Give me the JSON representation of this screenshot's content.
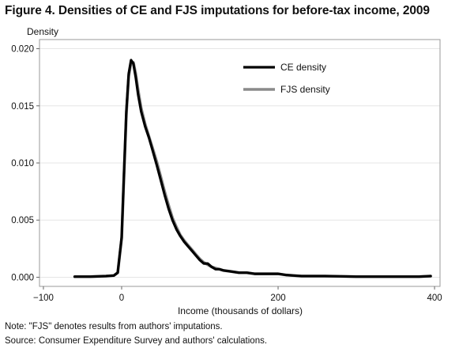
{
  "figure_title": "Figure 4. Densities of CE and FJS imputations for before-tax income, 2009",
  "note": "Note: \"FJS\" denotes results from authors' imputations.",
  "source": "Source: Consumer Expenditure Survey and authors' calculations.",
  "chart_data": {
    "type": "line",
    "title": "Figure 4. Densities of CE and FJS imputations for before-tax income, 2009",
    "xlabel": "Income (thousands of dollars)",
    "ylabel": "Density",
    "xlim": [
      -105,
      407
    ],
    "ylim": [
      -0.0008,
      0.0208
    ],
    "x_ticks": [
      -100,
      0,
      200,
      400
    ],
    "x_tick_labels": [
      "−100",
      "0",
      "200",
      "400"
    ],
    "y_ticks": [
      0,
      0.005,
      0.01,
      0.015,
      0.02
    ],
    "y_tick_labels": [
      "0.000",
      "0.005",
      "0.010",
      "0.015",
      "0.020"
    ],
    "grid": true,
    "legend": "top-right",
    "series": [
      {
        "name": "CE density",
        "color": "#000000",
        "x": [
          -60,
          -40,
          -20,
          -10,
          -5,
          0,
          3,
          6,
          9,
          12,
          15,
          18,
          21,
          25,
          30,
          35,
          40,
          45,
          50,
          55,
          60,
          65,
          70,
          75,
          80,
          85,
          90,
          95,
          100,
          105,
          110,
          115,
          120,
          125,
          130,
          140,
          150,
          160,
          170,
          180,
          190,
          200,
          210,
          220,
          230,
          240,
          260,
          280,
          300,
          320,
          340,
          360,
          380,
          395
        ],
        "y": [
          5e-05,
          5e-05,
          0.0001,
          0.00015,
          0.0004,
          0.0035,
          0.009,
          0.0145,
          0.0178,
          0.019,
          0.0187,
          0.0175,
          0.016,
          0.0145,
          0.0132,
          0.0122,
          0.011,
          0.0098,
          0.0085,
          0.0072,
          0.006,
          0.005,
          0.0042,
          0.0036,
          0.0031,
          0.0027,
          0.0023,
          0.0019,
          0.0015,
          0.0012,
          0.0012,
          0.0009,
          0.0007,
          0.0007,
          0.0006,
          0.0005,
          0.0004,
          0.0004,
          0.0003,
          0.0003,
          0.0003,
          0.0003,
          0.0002,
          0.00015,
          0.0001,
          0.0001,
          0.0001,
          8e-05,
          5e-05,
          5e-05,
          5e-05,
          5e-05,
          5e-05,
          0.0001
        ]
      },
      {
        "name": "FJS density",
        "color": "#8a8a8a",
        "x": [
          -60,
          -40,
          -20,
          -10,
          -5,
          0,
          3,
          6,
          9,
          12,
          15,
          18,
          21,
          25,
          30,
          35,
          40,
          45,
          50,
          55,
          60,
          65,
          70,
          75,
          80,
          85,
          90,
          95,
          100,
          105,
          110,
          115,
          120,
          125,
          130,
          140,
          150,
          160,
          170,
          180,
          190,
          200,
          210,
          220,
          230,
          240,
          260,
          280,
          300,
          320,
          340,
          360,
          380,
          395
        ],
        "y": [
          5e-05,
          5e-05,
          0.0001,
          0.00015,
          0.0004,
          0.0034,
          0.0088,
          0.0142,
          0.0176,
          0.0188,
          0.0188,
          0.0178,
          0.0164,
          0.0148,
          0.0134,
          0.0123,
          0.0112,
          0.0101,
          0.0088,
          0.0075,
          0.0063,
          0.0052,
          0.0044,
          0.0037,
          0.0032,
          0.0028,
          0.0024,
          0.002,
          0.0016,
          0.0013,
          0.0011,
          0.0009,
          0.0008,
          0.0007,
          0.0006,
          0.0005,
          0.0004,
          0.0004,
          0.0003,
          0.0003,
          0.0003,
          0.0003,
          0.0002,
          0.00015,
          0.0001,
          0.0001,
          0.0001,
          8e-05,
          5e-05,
          5e-05,
          5e-05,
          5e-05,
          5e-05,
          0.0001
        ]
      }
    ]
  }
}
